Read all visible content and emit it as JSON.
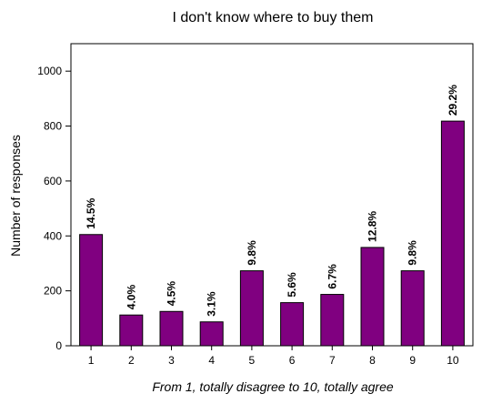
{
  "chart_data": {
    "type": "bar",
    "title": "I don't know where to buy them",
    "xlabel": "From 1, totally disagree to 10, totally agree",
    "ylabel": "Number of responses",
    "categories": [
      "1",
      "2",
      "3",
      "4",
      "5",
      "6",
      "7",
      "8",
      "9",
      "10"
    ],
    "values": [
      405,
      112,
      125,
      87,
      273,
      157,
      187,
      358,
      273,
      818
    ],
    "data_labels": [
      "14.5%",
      "4.0%",
      "4.5%",
      "3.1%",
      "9.8%",
      "5.6%",
      "6.7%",
      "12.8%",
      "9.8%",
      "29.2%"
    ],
    "ylim": [
      0,
      1100
    ],
    "yticks": [
      "0",
      "200",
      "400",
      "600",
      "800",
      "1000"
    ],
    "grid": false,
    "bar_color": "#800080"
  }
}
